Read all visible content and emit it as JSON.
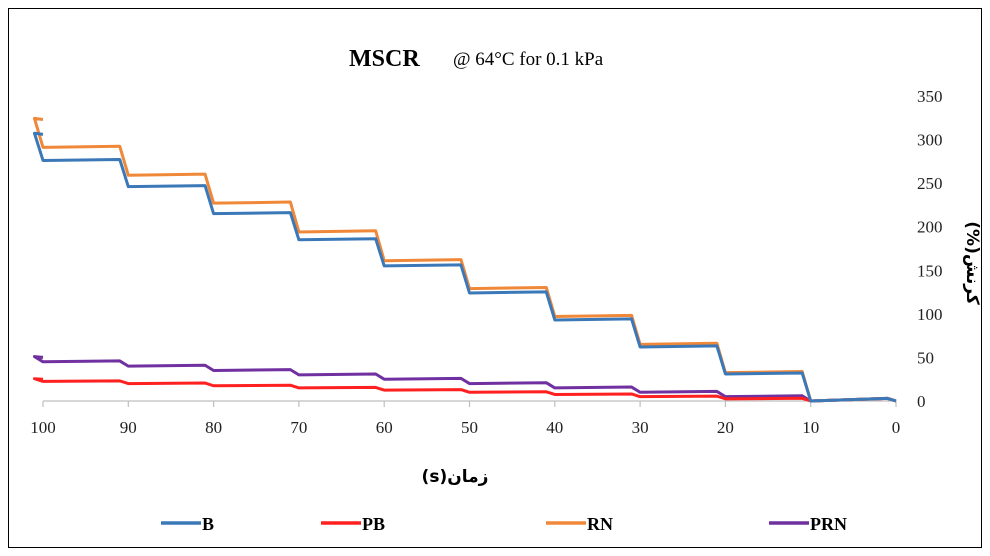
{
  "chart_data": {
    "type": "line",
    "title": "MSCR",
    "subtitle": "@ 64°C for 0.1 kPa",
    "xlabel": "زمان(s)",
    "ylabel": "کرنش(%)",
    "x_ticks": [
      "100",
      "90",
      "80",
      "70",
      "60",
      "50",
      "40",
      "30",
      "20",
      "10",
      "0"
    ],
    "y_ticks": [
      "0",
      "50",
      "100",
      "150",
      "200",
      "250",
      "300",
      "350"
    ],
    "xlim": [
      100,
      0
    ],
    "ylim": [
      0,
      350
    ],
    "grid": false,
    "legend": "bottom",
    "series": [
      {
        "name": "B",
        "color": "#3b78b8",
        "values": [
          0,
          31,
          62,
          93,
          124,
          155,
          185,
          215,
          246,
          276,
          306
        ],
        "increment": 1.2
      },
      {
        "name": "PB",
        "color": "#ff2020",
        "values": [
          0,
          2.5,
          5,
          7.5,
          10,
          12.5,
          15,
          17.5,
          20,
          22.5,
          25
        ],
        "increment": 0.6
      },
      {
        "name": "RN",
        "color": "#f0883a",
        "values": [
          0,
          32.5,
          65,
          97,
          129,
          161,
          194,
          227,
          259,
          291,
          323
        ],
        "increment": 1.3
      },
      {
        "name": "PRN",
        "color": "#7030a0",
        "values": [
          0,
          5,
          10,
          15,
          20,
          25,
          30,
          35,
          40,
          45,
          50
        ],
        "increment": 1.0
      }
    ]
  }
}
